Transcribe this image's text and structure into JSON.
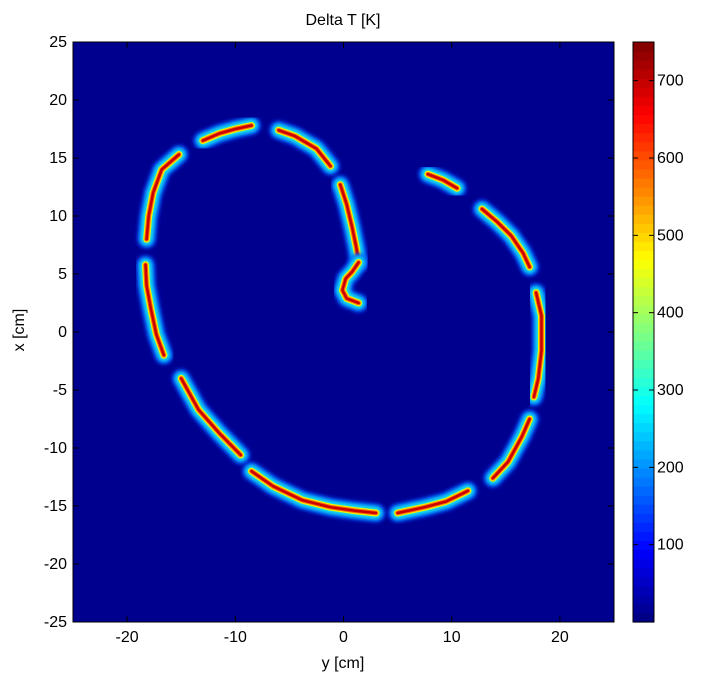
{
  "chart_data": {
    "type": "heatmap",
    "title": "Delta T [K]",
    "xlabel": "y [cm]",
    "ylabel": "x [cm]",
    "xlim": [
      -25,
      25
    ],
    "ylim": [
      -25,
      25
    ],
    "xticks": [
      "-20",
      "-10",
      "0",
      "10",
      "20"
    ],
    "yticks": [
      "25",
      "20",
      "15",
      "10",
      "5",
      "0",
      "-5",
      "-10",
      "-15",
      "-20",
      "-25"
    ],
    "colorbar": {
      "range": [
        0,
        750
      ],
      "ticks": [
        "100",
        "200",
        "300",
        "400",
        "500",
        "600",
        "700"
      ],
      "colormap": "jet"
    },
    "background_value": 0,
    "segment_peak_value": 750,
    "segments": [
      {
        "points": [
          [
            -18.2,
            8
          ],
          [
            -18,
            10
          ],
          [
            -17.6,
            12
          ],
          [
            -16.8,
            14
          ],
          [
            -15.2,
            15.3
          ]
        ]
      },
      {
        "points": [
          [
            -13,
            16.5
          ],
          [
            -11.5,
            17.1
          ],
          [
            -10,
            17.5
          ],
          [
            -8.5,
            17.8
          ]
        ]
      },
      {
        "points": [
          [
            -6,
            17.4
          ],
          [
            -4.5,
            16.9
          ],
          [
            -2.5,
            15.8
          ],
          [
            -1.2,
            14.3
          ]
        ]
      },
      {
        "points": [
          [
            -0.3,
            12.7
          ],
          [
            0.3,
            11
          ],
          [
            0.8,
            9
          ],
          [
            1.2,
            7.2
          ],
          [
            1.4,
            6
          ]
        ]
      },
      {
        "points": [
          [
            1.4,
            6
          ],
          [
            0.8,
            5.2
          ],
          [
            0.2,
            4.6
          ],
          [
            -0.1,
            3.6
          ],
          [
            0.3,
            2.9
          ],
          [
            1.4,
            2.5
          ]
        ]
      },
      {
        "points": [
          [
            7.8,
            13.6
          ],
          [
            9.2,
            13.1
          ],
          [
            10.5,
            12.4
          ]
        ]
      },
      {
        "points": [
          [
            12.8,
            10.6
          ],
          [
            14.2,
            9.5
          ],
          [
            15.5,
            8.3
          ],
          [
            16.6,
            6.8
          ],
          [
            17.2,
            5.6
          ]
        ]
      },
      {
        "points": [
          [
            17.8,
            3.4
          ],
          [
            18.3,
            1.4
          ],
          [
            18.3,
            -1.6
          ],
          [
            18,
            -4
          ],
          [
            17.6,
            -5.6
          ]
        ]
      },
      {
        "points": [
          [
            17.2,
            -7.5
          ],
          [
            16.5,
            -9
          ],
          [
            15.2,
            -11.2
          ],
          [
            13.8,
            -12.6
          ]
        ]
      },
      {
        "points": [
          [
            11.5,
            -13.7
          ],
          [
            9.5,
            -14.6
          ],
          [
            7.5,
            -15.1
          ],
          [
            5,
            -15.6
          ]
        ]
      },
      {
        "points": [
          [
            3,
            -15.6
          ],
          [
            1,
            -15.4
          ],
          [
            -1.2,
            -15.1
          ],
          [
            -3.8,
            -14.5
          ],
          [
            -6.5,
            -13.3
          ],
          [
            -8.5,
            -12
          ]
        ]
      },
      {
        "points": [
          [
            -9.5,
            -10.6
          ],
          [
            -11.5,
            -8.7
          ],
          [
            -13.4,
            -6.7
          ],
          [
            -15,
            -4
          ]
        ]
      },
      {
        "points": [
          [
            -16.6,
            -2
          ],
          [
            -17.3,
            -0.2
          ],
          [
            -17.8,
            2
          ],
          [
            -18.2,
            4
          ],
          [
            -18.3,
            5.8
          ]
        ]
      }
    ]
  }
}
